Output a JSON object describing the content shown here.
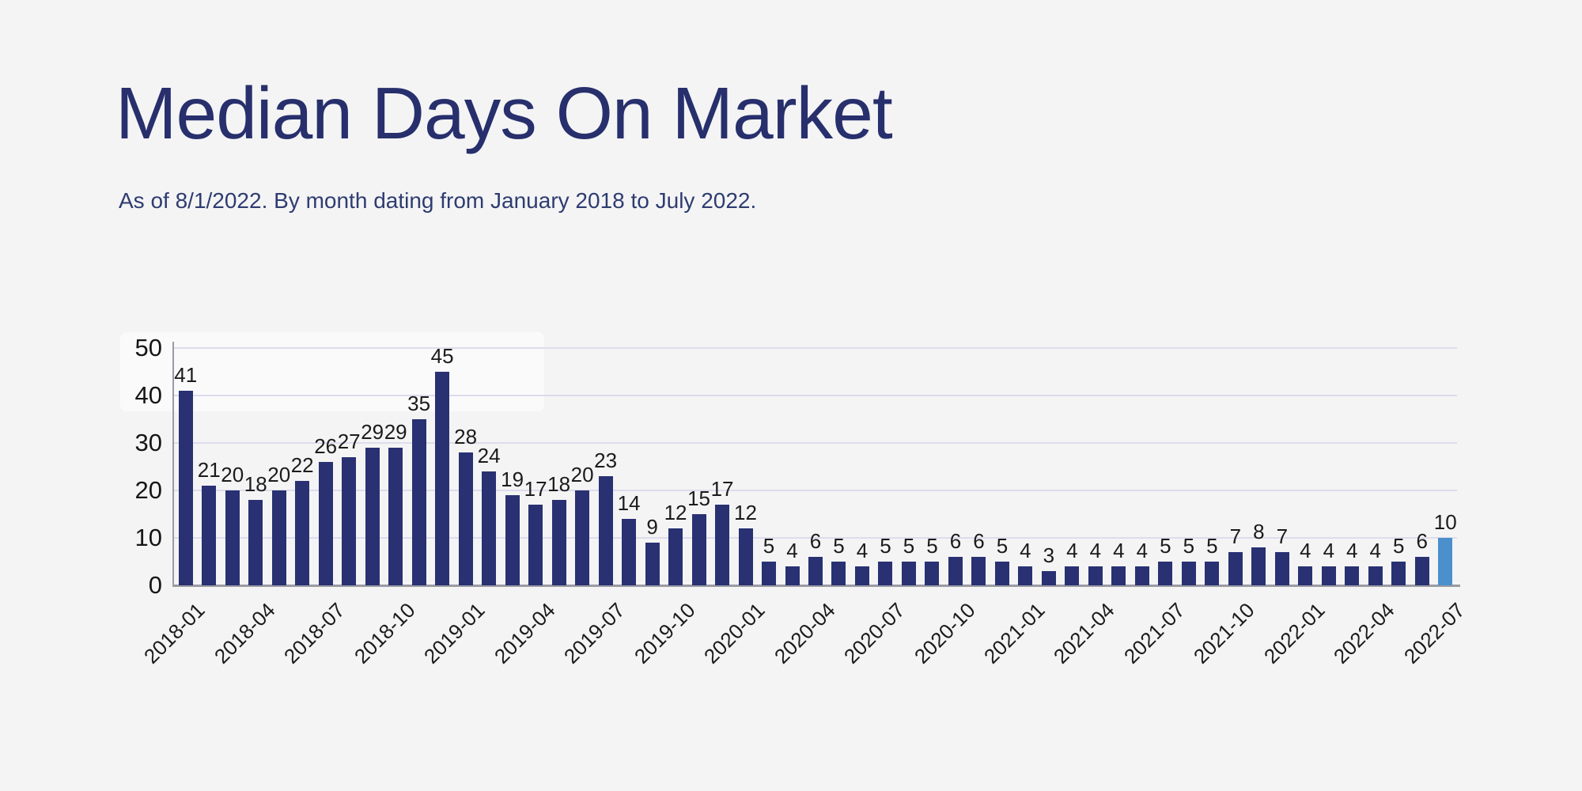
{
  "header": {
    "title": "Median Days On Market",
    "subtitle": "As of 8/1/2022. By month dating from January 2018 to July 2022."
  },
  "chart_data": {
    "type": "bar",
    "title": "Median Days On Market",
    "x": [
      "2018-01",
      "2018-02",
      "2018-03",
      "2018-04",
      "2018-05",
      "2018-06",
      "2018-07",
      "2018-08",
      "2018-09",
      "2018-10",
      "2018-11",
      "2018-12",
      "2019-01",
      "2019-02",
      "2019-03",
      "2019-04",
      "2019-05",
      "2019-06",
      "2019-07",
      "2019-08",
      "2019-09",
      "2019-10",
      "2019-11",
      "2019-12",
      "2020-01",
      "2020-02",
      "2020-03",
      "2020-04",
      "2020-05",
      "2020-06",
      "2020-07",
      "2020-08",
      "2020-09",
      "2020-10",
      "2020-11",
      "2020-12",
      "2021-01",
      "2021-02",
      "2021-03",
      "2021-04",
      "2021-05",
      "2021-06",
      "2021-07",
      "2021-08",
      "2021-09",
      "2021-10",
      "2021-11",
      "2021-12",
      "2022-01",
      "2022-02",
      "2022-03",
      "2022-04",
      "2022-05",
      "2022-06",
      "2022-07"
    ],
    "values": [
      41,
      21,
      20,
      18,
      20,
      22,
      26,
      27,
      29,
      29,
      35,
      45,
      28,
      24,
      19,
      17,
      18,
      20,
      23,
      14,
      9,
      12,
      15,
      17,
      12,
      5,
      4,
      6,
      5,
      4,
      5,
      5,
      5,
      6,
      6,
      5,
      4,
      3,
      4,
      4,
      4,
      4,
      5,
      5,
      5,
      7,
      8,
      7,
      4,
      4,
      4,
      4,
      5,
      6,
      10
    ],
    "x_tick_labels": [
      "2018-01",
      "2018-04",
      "2018-07",
      "2018-10",
      "2019-01",
      "2019-04",
      "2019-07",
      "2019-10",
      "2020-01",
      "2020-04",
      "2020-07",
      "2020-10",
      "2021-01",
      "2021-04",
      "2021-07",
      "2021-10",
      "2022-01",
      "2022-04",
      "2022-07"
    ],
    "tick_every": 3,
    "yticks": [
      0,
      10,
      20,
      30,
      40,
      50
    ],
    "ylim": [
      0,
      50
    ],
    "grid": "horizontal",
    "legend": "none",
    "value_labels": true,
    "bar_color": "#293172",
    "highlight_color": "#4b8fcd",
    "highlight_index": 54
  },
  "colors": {
    "background": "#f4f4f5",
    "title": "#272f6c",
    "subtitle": "#2e3c70",
    "gridline": "#dddcec",
    "axis": "#9b9ba3",
    "label": "#1b1b1b"
  }
}
